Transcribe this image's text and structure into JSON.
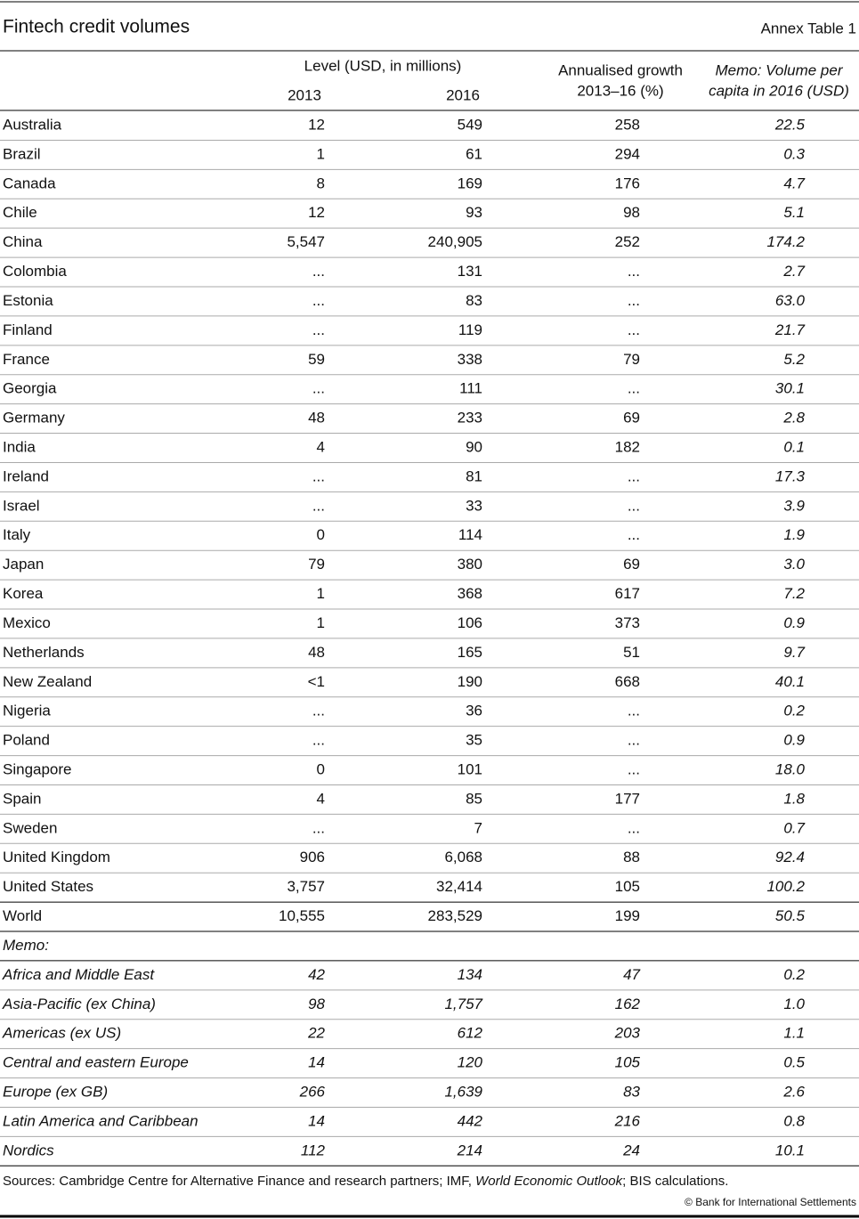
{
  "header": {
    "title": "Fintech credit volumes",
    "label": "Annex Table 1"
  },
  "table": {
    "columns": {
      "level": "Level (USD, in millions)",
      "y2013": "2013",
      "y2016": "2016",
      "growth": [
        "Annualised growth",
        "2013–16 (%)"
      ],
      "per_capita": [
        "Memo: Volume per",
        "capita in 2016 (USD)"
      ]
    },
    "rows": [
      [
        "Australia",
        "12",
        "549",
        "258",
        "22.5"
      ],
      [
        "Brazil",
        "1",
        "61",
        "294",
        "0.3"
      ],
      [
        "Canada",
        "8",
        "169",
        "176",
        "4.7"
      ],
      [
        "Chile",
        "12",
        "93",
        "98",
        "5.1"
      ],
      [
        "China",
        "5,547",
        "240,905",
        "252",
        "174.2"
      ],
      [
        "Colombia",
        "...",
        "131",
        "...",
        "2.7"
      ],
      [
        "Estonia",
        "...",
        "83",
        "...",
        "63.0"
      ],
      [
        "Finland",
        "...",
        "119",
        "...",
        "21.7"
      ],
      [
        "France",
        "59",
        "338",
        "79",
        "5.2"
      ],
      [
        "Georgia",
        "...",
        "111",
        "...",
        "30.1"
      ],
      [
        "Germany",
        "48",
        "233",
        "69",
        "2.8"
      ],
      [
        "India",
        "4",
        "90",
        "182",
        "0.1"
      ],
      [
        "Ireland",
        "...",
        "81",
        "...",
        "17.3"
      ],
      [
        "Israel",
        "...",
        "33",
        "...",
        "3.9"
      ],
      [
        "Italy",
        "0",
        "114",
        "...",
        "1.9"
      ],
      [
        "Japan",
        "79",
        "380",
        "69",
        "3.0"
      ],
      [
        "Korea",
        "1",
        "368",
        "617",
        "7.2"
      ],
      [
        "Mexico",
        "1",
        "106",
        "373",
        "0.9"
      ],
      [
        "Netherlands",
        "48",
        "165",
        "51",
        "9.7"
      ],
      [
        "New Zealand",
        "<1",
        "190",
        "668",
        "40.1"
      ],
      [
        "Nigeria",
        "...",
        "36",
        "...",
        "0.2"
      ],
      [
        "Poland",
        "...",
        "35",
        "...",
        "0.9"
      ],
      [
        "Singapore",
        "0",
        "101",
        "...",
        "18.0"
      ],
      [
        "Spain",
        "4",
        "85",
        "177",
        "1.8"
      ],
      [
        "Sweden",
        "...",
        "7",
        "...",
        "0.7"
      ],
      [
        "United Kingdom",
        "906",
        "6,068",
        "88",
        "92.4"
      ],
      [
        "United States",
        "3,757",
        "32,414",
        "105",
        "100.2"
      ]
    ],
    "total": [
      "World",
      "10,555",
      "283,529",
      "199",
      "50.5"
    ],
    "memo_label": "Memo:",
    "memo_rows": [
      [
        "Africa and Middle East",
        "42",
        "134",
        "47",
        "0.2"
      ],
      [
        "Asia-Pacific (ex China)",
        "98",
        "1,757",
        "162",
        "1.0"
      ],
      [
        "Americas (ex US)",
        "22",
        "612",
        "203",
        "1.1"
      ],
      [
        "Central and eastern Europe",
        "14",
        "120",
        "105",
        "0.5"
      ],
      [
        "Europe (ex GB)",
        "266",
        "1,639",
        "83",
        "2.6"
      ],
      [
        "Latin America and Caribbean",
        "14",
        "442",
        "216",
        "0.8"
      ],
      [
        "Nordics",
        "112",
        "214",
        "24",
        "10.1"
      ]
    ]
  },
  "footer": {
    "sources": [
      "Sources: Cambridge Centre for Alternative Finance and research partners; IMF, ",
      "World Economic Outlook",
      "; BIS calculations."
    ],
    "copyright": "© Bank for International Settlements"
  }
}
